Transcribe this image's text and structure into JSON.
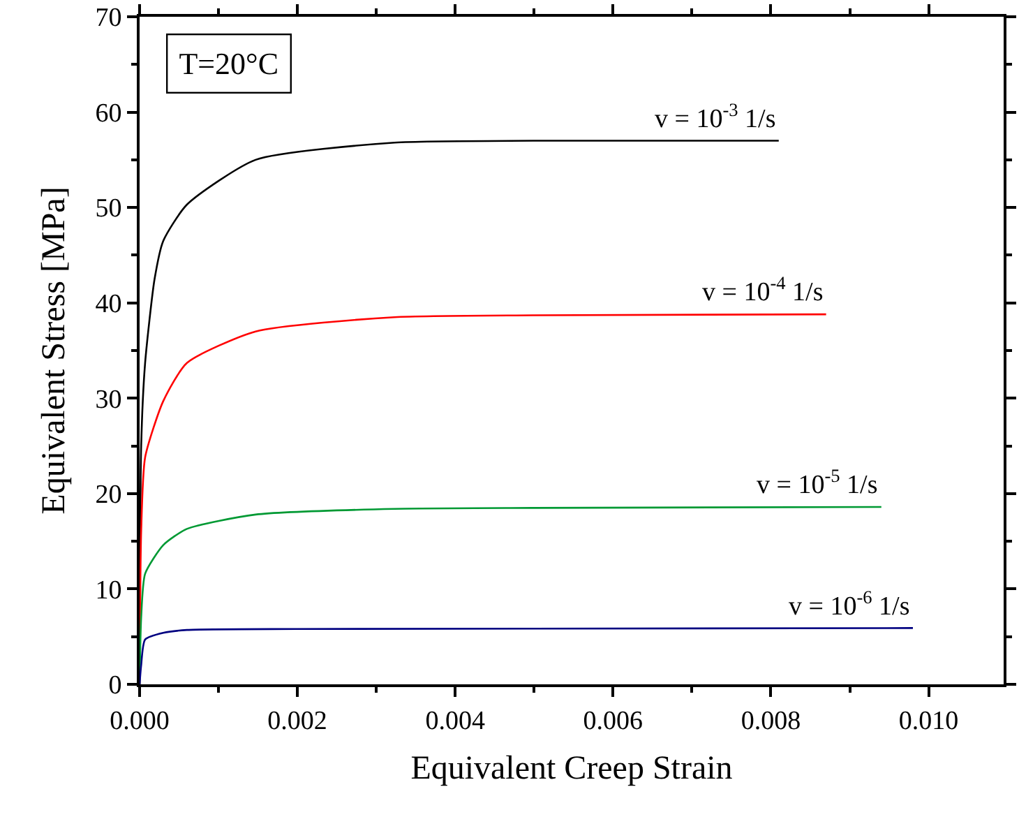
{
  "chart_data": {
    "type": "line",
    "xlabel": "Equivalent Creep Strain",
    "ylabel": "Equivalent Stress [MPa]",
    "annotations": [
      "T=20°C"
    ],
    "xlim": [
      0,
      0.01095
    ],
    "ylim": [
      0,
      70
    ],
    "xticks": [
      {
        "value": 0,
        "label": "0.000"
      },
      0.002,
      0.004,
      0.006,
      0.008,
      {
        "value": 0.01,
        "label": "0.010"
      }
    ],
    "yticks": [
      0,
      10,
      20,
      30,
      40,
      50,
      60,
      70
    ],
    "legend": false,
    "marker": "none",
    "line_style": "solid",
    "series": [
      {
        "name": "v = 10$^{-3}$ 1/s",
        "color": "#000000",
        "x": [
          0,
          2e-05,
          7e-05,
          0.00019,
          0.0003,
          0.0006,
          0.00147,
          0.00323,
          0.005,
          0.0081
        ],
        "values": [
          0,
          25,
          33.7,
          42.5,
          46.5,
          50.3,
          55,
          56.8,
          57,
          57
        ]
      },
      {
        "name": "v = 10$^{-4}$ 1/s",
        "color": "#ff0000",
        "x": [
          0,
          2e-05,
          7e-05,
          0.0003,
          0.0006,
          0.00147,
          0.00323,
          0.005,
          0.0087
        ],
        "values": [
          0,
          16,
          23.8,
          29.7,
          33.7,
          37,
          38.5,
          38.7,
          38.8
        ]
      },
      {
        "name": "v = 10$^{-5}$ 1/s",
        "color": "#009933",
        "x": [
          0,
          2e-05,
          7e-05,
          0.0003,
          0.0006,
          0.00147,
          0.00323,
          0.005,
          0.0094
        ],
        "values": [
          0,
          7,
          11.6,
          14.6,
          16.3,
          17.8,
          18.4,
          18.5,
          18.6
        ]
      },
      {
        "name": "v = 10$^{-6}$ 1/s",
        "color": "#000080",
        "x": [
          0,
          2e-05,
          7e-05,
          0.0003,
          0.0006,
          0.002,
          0.0098
        ],
        "values": [
          0,
          2,
          4.7,
          5.4,
          5.7,
          5.8,
          5.9
        ]
      }
    ]
  }
}
